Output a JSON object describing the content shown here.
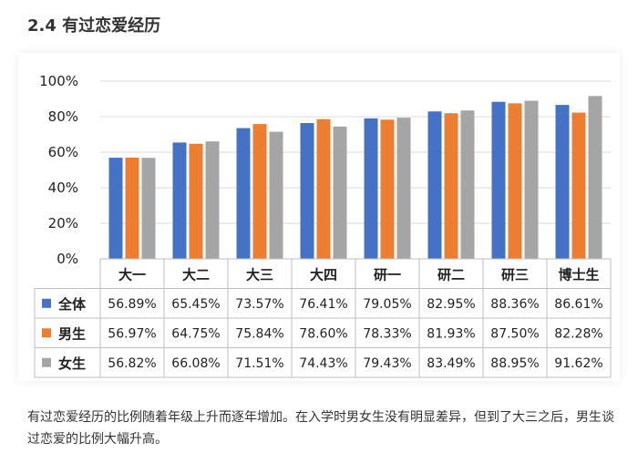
{
  "section_title": "2.4 有过恋爱经历",
  "caption": "有过恋爱经历的比例随着年级上升而逐年增加。在入学时男女生没有明显差异，但到了大三之后，男生谈过恋爱的比例大幅升高。",
  "chart_data": {
    "type": "bar",
    "categories": [
      "大一",
      "大二",
      "大三",
      "大四",
      "研一",
      "研二",
      "研三",
      "博士生"
    ],
    "y_ticks": [
      "0%",
      "20%",
      "40%",
      "60%",
      "80%",
      "100%"
    ],
    "ylim": [
      0,
      100
    ],
    "grid": true,
    "legend": "table-left",
    "series": [
      {
        "name": "全体",
        "color": "#4472C4",
        "values": [
          56.89,
          65.45,
          73.57,
          76.41,
          79.05,
          82.95,
          88.36,
          86.61
        ],
        "labels": [
          "56.89%",
          "65.45%",
          "73.57%",
          "76.41%",
          "79.05%",
          "82.95%",
          "88.36%",
          "86.61%"
        ]
      },
      {
        "name": "男生",
        "color": "#ED7D31",
        "values": [
          56.97,
          64.75,
          75.84,
          78.6,
          78.33,
          81.93,
          87.5,
          82.28
        ],
        "labels": [
          "56.97%",
          "64.75%",
          "75.84%",
          "78.60%",
          "78.33%",
          "81.93%",
          "87.50%",
          "82.28%"
        ]
      },
      {
        "name": "女生",
        "color": "#A5A5A5",
        "values": [
          56.82,
          66.08,
          71.51,
          74.43,
          79.43,
          83.49,
          88.95,
          91.62
        ],
        "labels": [
          "56.82%",
          "66.08%",
          "71.51%",
          "74.43%",
          "79.43%",
          "83.49%",
          "88.95%",
          "91.62%"
        ]
      }
    ]
  }
}
